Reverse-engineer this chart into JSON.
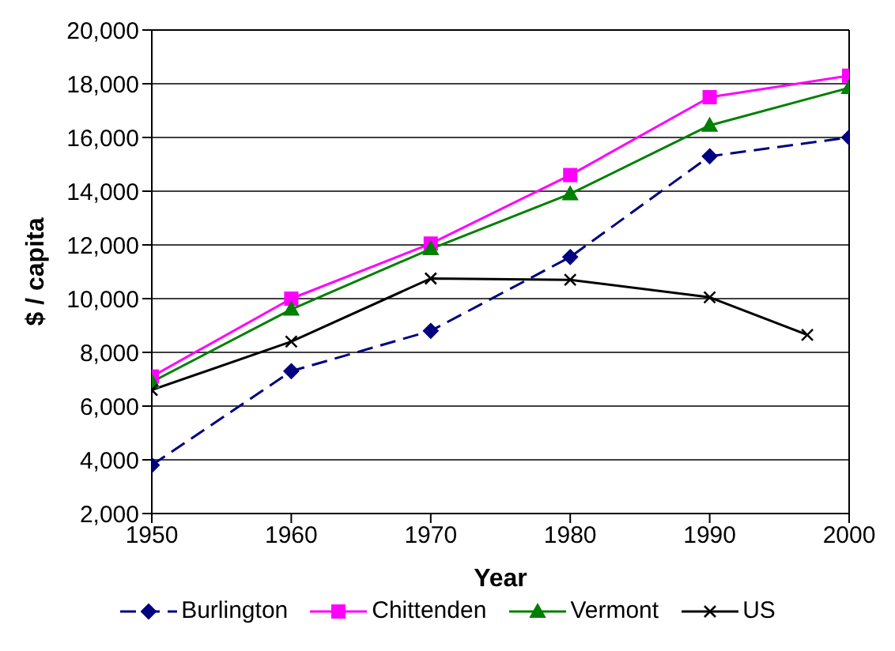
{
  "chart_data": {
    "type": "line",
    "xlabel": "Year",
    "ylabel": "$ / capita",
    "x": [
      1950,
      1960,
      1970,
      1980,
      1990,
      2000
    ],
    "series": [
      {
        "name": "Burlington",
        "color": "#000080",
        "marker": "diamond",
        "line_style": "dashed",
        "values": [
          3800,
          7300,
          8800,
          11550,
          15300,
          16000
        ]
      },
      {
        "name": "Chittenden",
        "color": "#ff00ff",
        "marker": "square",
        "line_style": "solid",
        "values": [
          7100,
          10000,
          12050,
          14600,
          17500,
          18300
        ]
      },
      {
        "name": "Vermont",
        "color": "#008000",
        "marker": "triangle",
        "line_style": "solid",
        "values": [
          6900,
          9600,
          11850,
          13900,
          16450,
          17850
        ]
      },
      {
        "name": "US",
        "color": "#000000",
        "marker": "cross",
        "line_style": "solid",
        "x": [
          1950,
          1960,
          1970,
          1980,
          1990,
          1997
        ],
        "values": [
          6600,
          8400,
          10750,
          10700,
          10050,
          8650
        ]
      }
    ],
    "xlim": [
      1950,
      2000
    ],
    "xticks": [
      1950,
      1960,
      1970,
      1980,
      1990,
      2000
    ],
    "ylim": [
      2000,
      20000
    ],
    "yticks": [
      {
        "value": 2000,
        "label": "2,000"
      },
      {
        "value": 4000,
        "label": "4,000"
      },
      {
        "value": 6000,
        "label": "6,000"
      },
      {
        "value": 8000,
        "label": "8,000"
      },
      {
        "value": 10000,
        "label": "10,000"
      },
      {
        "value": 12000,
        "label": "12,000"
      },
      {
        "value": 14000,
        "label": "14,000"
      },
      {
        "value": 16000,
        "label": "16,000"
      },
      {
        "value": 18000,
        "label": "18,000"
      },
      {
        "value": 20000,
        "label": "20,000"
      }
    ],
    "grid": "y",
    "legend": "bottom"
  }
}
